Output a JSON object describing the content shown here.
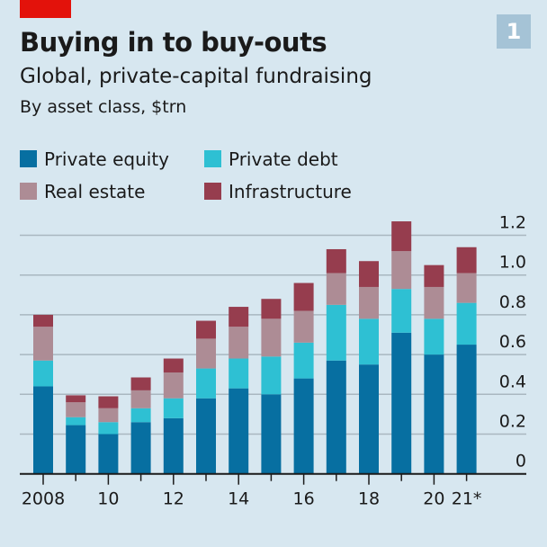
{
  "badge": "1",
  "chart_data": {
    "type": "bar",
    "stacked": true,
    "title": "Buying in to buy-outs",
    "subtitle": "Global, private-capital fundraising",
    "ylabel": "By asset class, $trn",
    "categories": [
      "2008",
      "2009",
      "2010",
      "2011",
      "2012",
      "2013",
      "2014",
      "2015",
      "2016",
      "2017",
      "2018",
      "2019",
      "2020",
      "2021*"
    ],
    "x_tick_labels": {
      "2008": "2008",
      "2010": "10",
      "2012": "12",
      "2014": "14",
      "2016": "16",
      "2018": "18",
      "2020": "20",
      "2021*": "21*"
    },
    "series": [
      {
        "name": "Private equity",
        "color": "#076fa1",
        "values": [
          0.44,
          0.245,
          0.2,
          0.26,
          0.28,
          0.38,
          0.43,
          0.4,
          0.48,
          0.57,
          0.55,
          0.71,
          0.6,
          0.65
        ]
      },
      {
        "name": "Private debt",
        "color": "#2ec0d3",
        "values": [
          0.13,
          0.04,
          0.06,
          0.07,
          0.1,
          0.15,
          0.15,
          0.19,
          0.18,
          0.28,
          0.23,
          0.22,
          0.18,
          0.21
        ]
      },
      {
        "name": "Real estate",
        "color": "#ad8c95",
        "values": [
          0.17,
          0.075,
          0.07,
          0.09,
          0.13,
          0.15,
          0.16,
          0.19,
          0.16,
          0.16,
          0.16,
          0.19,
          0.16,
          0.15
        ]
      },
      {
        "name": "Infrastructure",
        "color": "#963d4e",
        "values": [
          0.06,
          0.035,
          0.06,
          0.065,
          0.07,
          0.09,
          0.1,
          0.1,
          0.14,
          0.12,
          0.13,
          0.15,
          0.11,
          0.13
        ]
      }
    ],
    "ylim": [
      0,
      1.2
    ],
    "yticks": [
      "0",
      "0.2",
      "0.4",
      "0.6",
      "0.8",
      "1.0",
      "1.2"
    ],
    "y_axis_side": "right",
    "grid": true,
    "legend": "top-left"
  }
}
